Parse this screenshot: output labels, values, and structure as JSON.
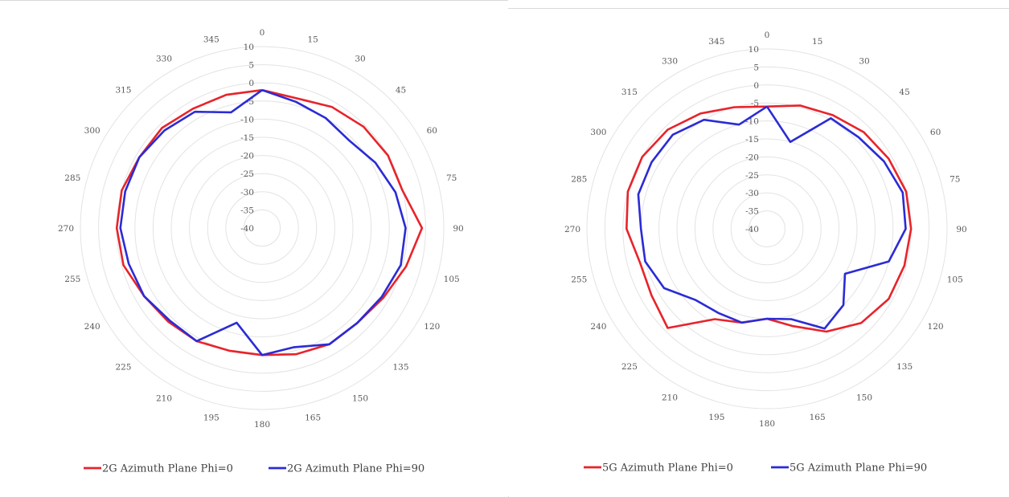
{
  "chart_data": [
    {
      "type": "polar-line",
      "angle_labels": [
        "0",
        "15",
        "30",
        "45",
        "60",
        "75",
        "90",
        "105",
        "120",
        "135",
        "150",
        "165",
        "180",
        "195",
        "210",
        "225",
        "240",
        "255",
        "270",
        "285",
        "300",
        "315",
        "330",
        "345"
      ],
      "radial_ticks": [
        "10",
        "5",
        "0",
        "-5",
        "-10",
        "-15",
        "-20",
        "-25",
        "-30",
        "-35",
        "-40"
      ],
      "rlim": [
        -40,
        10
      ],
      "grid": "circular",
      "legend_position": "bottom",
      "series": [
        {
          "name": "2G Azimuth Plane Phi=0",
          "color": "#e8232a",
          "angles": [
            0,
            15,
            30,
            45,
            60,
            75,
            90,
            105,
            120,
            135,
            150,
            165,
            180,
            195,
            210,
            225,
            240,
            255,
            270,
            285,
            300,
            315,
            330,
            345
          ],
          "values": [
            -2,
            -3,
            -1.5,
            -0.5,
            0,
            0,
            4,
            1,
            -1.5,
            -3,
            -3,
            -4,
            -5,
            -5,
            -4,
            -3.5,
            -2.5,
            -0.5,
            0,
            0,
            -1,
            -1,
            -2,
            -2
          ]
        },
        {
          "name": "2G Azimuth Plane Phi=90",
          "color": "#2b2bd6",
          "angles": [
            0,
            15,
            30,
            45,
            60,
            75,
            90,
            105,
            120,
            135,
            150,
            165,
            180,
            195,
            210,
            225,
            240,
            255,
            270,
            285,
            300,
            315,
            330,
            345
          ],
          "values": [
            -2,
            -4,
            -5,
            -6,
            -4,
            -2,
            -0.5,
            -0.5,
            -2,
            -3,
            -3,
            -6,
            -5,
            -13,
            -4,
            -4,
            -2.5,
            -2,
            -1,
            -1,
            -1,
            -2,
            -3,
            -7
          ]
        }
      ]
    },
    {
      "type": "polar-line",
      "angle_labels": [
        "0",
        "15",
        "30",
        "45",
        "60",
        "75",
        "90",
        "105",
        "120",
        "135",
        "150",
        "165",
        "180",
        "195",
        "210",
        "225",
        "240",
        "255",
        "270",
        "285",
        "300",
        "315",
        "330",
        "345"
      ],
      "radial_ticks": [
        "10",
        "5",
        "0",
        "-5",
        "-10",
        "-15",
        "-20",
        "-25",
        "-30",
        "-35",
        "-40"
      ],
      "rlim": [
        -40,
        10
      ],
      "grid": "circular",
      "legend_position": "bottom",
      "series": [
        {
          "name": "5G Azimuth Plane Phi=0",
          "color": "#e8232a",
          "angles": [
            0,
            15,
            30,
            45,
            60,
            75,
            90,
            105,
            120,
            135,
            150,
            165,
            180,
            195,
            210,
            225,
            240,
            255,
            270,
            285,
            300,
            315,
            330,
            345
          ],
          "values": [
            -6,
            -4.5,
            -3.5,
            -2,
            -1,
            0,
            0,
            -0.5,
            -1,
            -3,
            -7,
            -12,
            -15,
            -13,
            -11,
            -1,
            -3,
            -3.5,
            -1,
            0,
            0,
            -1,
            -3,
            -5
          ]
        },
        {
          "name": "5G Azimuth Plane Phi=90",
          "color": "#2b2bd6",
          "angles": [
            0,
            15,
            30,
            45,
            60,
            75,
            90,
            105,
            120,
            135,
            150,
            165,
            180,
            195,
            210,
            225,
            240,
            255,
            270,
            285,
            300,
            315,
            330,
            345
          ],
          "values": [
            -6,
            -15,
            -4.5,
            -4,
            -2.5,
            -1,
            -1.5,
            -5,
            -15,
            -10,
            -8,
            -14,
            -15,
            -13,
            -13,
            -12,
            -7,
            -5,
            -5,
            -3,
            -3,
            -3,
            -5,
            -10
          ]
        }
      ]
    }
  ]
}
